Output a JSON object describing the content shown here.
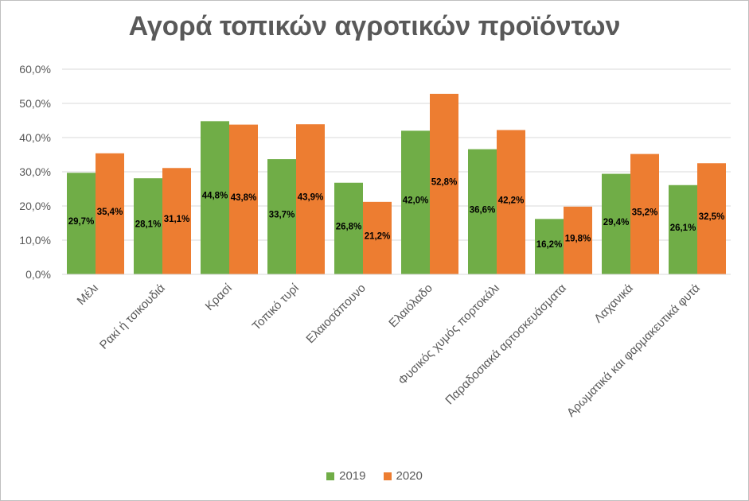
{
  "chart_data": {
    "type": "bar",
    "title": "Αγορά τοπικών αγροτικών προϊόντων",
    "xlabel": "",
    "ylabel": "",
    "ylim": [
      0,
      60
    ],
    "y_ticks": [
      0,
      10,
      20,
      30,
      40,
      50,
      60
    ],
    "y_tick_labels": [
      "0,0%",
      "10,0%",
      "20,0%",
      "30,0%",
      "40,0%",
      "50,0%",
      "60,0%"
    ],
    "grid": true,
    "legend_position": "bottom",
    "categories": [
      "Μέλι",
      "Ρακί ή τσικουδιά",
      "Κρασί",
      "Τοπικό τυρί",
      "Ελαιοσάπουνο",
      "Ελαιόλαδο",
      "Φυσικός χυμός πορτοκάλι",
      "Παραδοσιακά αρτοσκευάσματα",
      "Λαχανικά",
      "Αρωματικά και φαρμακευτικά φυτά"
    ],
    "series": [
      {
        "name": "2019",
        "color": "#70AD47",
        "values": [
          29.7,
          28.1,
          44.8,
          33.7,
          26.8,
          42.0,
          36.6,
          16.2,
          29.4,
          26.1
        ],
        "labels": [
          "29,7%",
          "28,1%",
          "44,8%",
          "33,7%",
          "26,8%",
          "42,0%",
          "36,6%",
          "16,2%",
          "29,4%",
          "26,1%"
        ]
      },
      {
        "name": "2020",
        "color": "#ED7D31",
        "values": [
          35.4,
          31.1,
          43.8,
          43.9,
          21.2,
          52.8,
          42.2,
          19.8,
          35.2,
          32.5
        ],
        "labels": [
          "35,4%",
          "31,1%",
          "43,8%",
          "43,9%",
          "21,2%",
          "52,8%",
          "42,2%",
          "19,8%",
          "35,2%",
          "32,5%"
        ]
      }
    ]
  }
}
